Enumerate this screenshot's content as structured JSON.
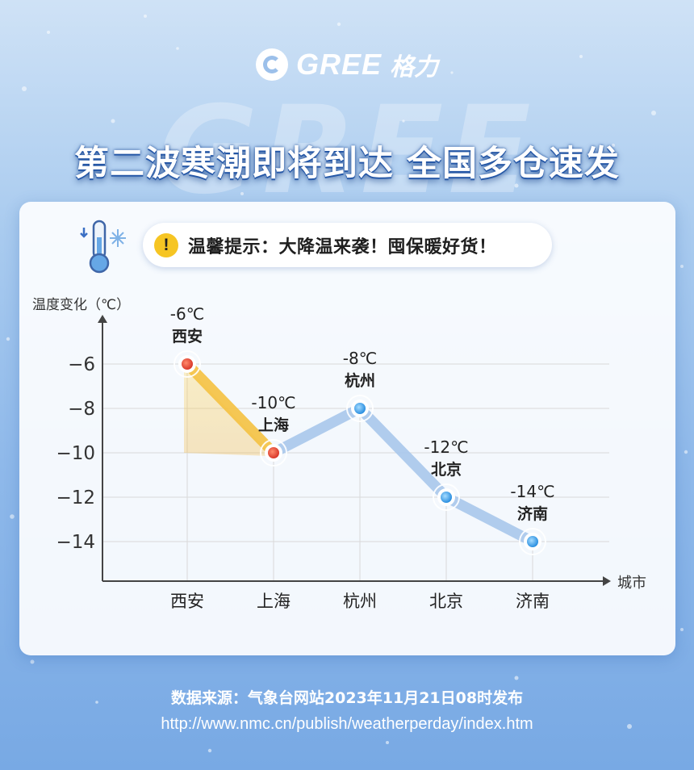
{
  "brand": {
    "logo_text": "GREE",
    "logo_cn": "格力",
    "bg_word": "GREE"
  },
  "headline": "第二波寒潮即将到达 全国多仓速发",
  "tip": {
    "text": "温馨提示：大降温来袭！囤保暖好货！"
  },
  "colors": {
    "warm_line": "#f5c242",
    "cold_line": "#a9c8ec",
    "warm_point": "#e8533d",
    "cold_point": "#3aa3e8",
    "axis": "#444444"
  },
  "chart_data": {
    "type": "line",
    "ylabel": "温度变化（℃）",
    "xlabel": "城市",
    "categories": [
      "西安",
      "上海",
      "杭州",
      "北京",
      "济南"
    ],
    "values": [
      -6,
      -10,
      -8,
      -12,
      -14
    ],
    "point_labels": [
      {
        "temp": "-6℃",
        "city": "西安"
      },
      {
        "temp": "-10℃",
        "city": "上海"
      },
      {
        "temp": "-8℃",
        "city": "杭州"
      },
      {
        "temp": "-12℃",
        "city": "北京"
      },
      {
        "temp": "-14℃",
        "city": "济南"
      }
    ],
    "y_ticks": [
      -6,
      -8,
      -10,
      -12,
      -14
    ],
    "y_tick_labels": [
      "−6",
      "−8",
      "−10",
      "−12",
      "−14"
    ],
    "ylim": [
      -15.5,
      -4
    ],
    "grid": true,
    "legend": "none"
  },
  "source": {
    "line1": "数据来源：气象台网站2023年11月21日08时发布",
    "line2": "http://www.nmc.cn/publish/weatherperday/index.htm"
  }
}
